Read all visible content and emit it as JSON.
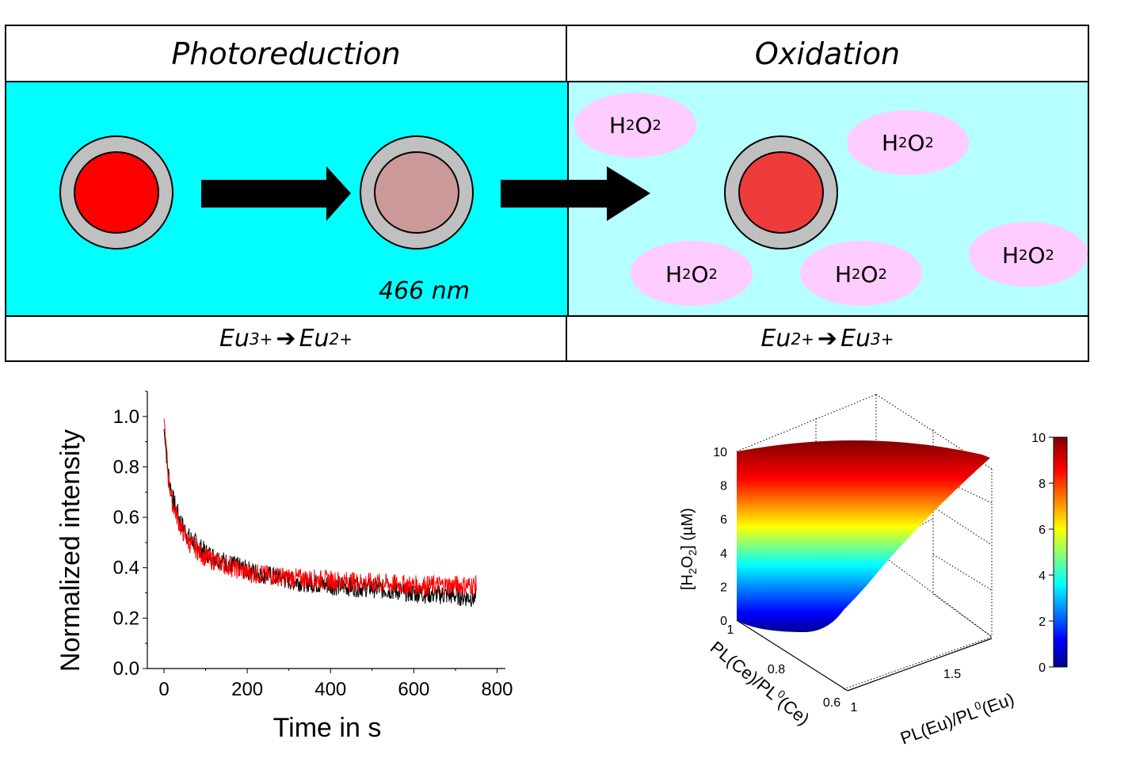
{
  "scheme": {
    "left_header": "Photoreduction",
    "right_header": "Oxidation",
    "wavelength_label": "466 nm",
    "left_reaction": {
      "from": "Eu",
      "from_charge": "3+",
      "arrow": "➔",
      "to": "Eu",
      "to_charge": "2+"
    },
    "right_reaction": {
      "from": "Eu",
      "from_charge": "2+",
      "arrow": "➔",
      "to": "Eu",
      "to_charge": "3+"
    },
    "h2o2_molecules": [
      {
        "main": "H",
        "sub1": "2",
        "mid": "O",
        "sub2": "2"
      },
      {
        "main": "H",
        "sub1": "2",
        "mid": "O",
        "sub2": "2"
      },
      {
        "main": "H",
        "sub1": "2",
        "mid": "O",
        "sub2": "2"
      },
      {
        "main": "H",
        "sub1": "2",
        "mid": "O",
        "sub2": "2"
      },
      {
        "main": "H",
        "sub1": "2",
        "mid": "O",
        "sub2": "2"
      }
    ],
    "colors": {
      "left_bg": "#00ffff",
      "right_bg": "#b5ffff",
      "shell": "#c0c0c0",
      "core_eu3": "#ff0000",
      "core_eu2": "#cc9999",
      "core_reoxidized": "#ee3b3b",
      "h2o2": "#ffccff"
    }
  },
  "chart_data": [
    {
      "type": "line",
      "title": "",
      "xlabel": "Time in s",
      "ylabel": "Normalized intensity",
      "xlim": [
        -40,
        820
      ],
      "ylim": [
        0,
        1.1
      ],
      "xticks": [
        "0",
        "200",
        "400",
        "600",
        "800"
      ],
      "xtick_values": [
        0,
        200,
        400,
        600,
        800
      ],
      "yticks": [
        "0.0",
        "0.2",
        "0.4",
        "0.6",
        "0.8",
        "1.0"
      ],
      "ytick_values": [
        0,
        0.2,
        0.4,
        0.6,
        0.8,
        1.0
      ],
      "series": [
        {
          "name": "black trace",
          "color": "#000000",
          "x": [
            0,
            10,
            20,
            40,
            60,
            100,
            150,
            200,
            250,
            300,
            400,
            500,
            600,
            700,
            750
          ],
          "y": [
            0.95,
            0.78,
            0.68,
            0.58,
            0.52,
            0.46,
            0.42,
            0.39,
            0.37,
            0.35,
            0.33,
            0.32,
            0.3,
            0.29,
            0.28
          ]
        },
        {
          "name": "red trace",
          "color": "#ff0000",
          "x": [
            0,
            10,
            20,
            40,
            60,
            100,
            150,
            200,
            250,
            300,
            400,
            500,
            600,
            700,
            750
          ],
          "y": [
            1.0,
            0.76,
            0.66,
            0.56,
            0.5,
            0.44,
            0.41,
            0.38,
            0.37,
            0.36,
            0.35,
            0.34,
            0.33,
            0.33,
            0.33
          ]
        }
      ]
    },
    {
      "type": "heatmap",
      "subtype": "surface3d",
      "title": "",
      "zlabel": "[H2O2] (µM)",
      "xlabel": "PL(Eu)/PL0(Eu)",
      "ylabel": "PL(Ce)/PL0(Ce)",
      "zticks": [
        "0",
        "2",
        "4",
        "6",
        "8",
        "10"
      ],
      "xticks": [
        "1",
        "1.5"
      ],
      "yticks": [
        "1",
        "0.8",
        "0.6"
      ],
      "zlim": [
        0,
        10
      ],
      "colorbar": {
        "ticks": [
          "0",
          "2",
          "4",
          "6",
          "8",
          "10"
        ],
        "range": [
          0,
          10
        ],
        "colormap": "jet"
      }
    }
  ]
}
